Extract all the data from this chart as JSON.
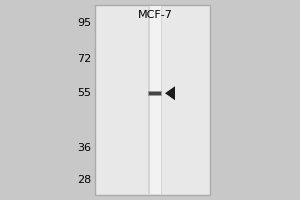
{
  "title": "MCF-7",
  "outer_bg": "#c8c8c8",
  "panel_bg": "#d8d8d8",
  "blot_bg": "#e8e8e8",
  "lane_bg": "#f2f2f2",
  "band_color": "#888888",
  "band_dark": "#444444",
  "arrow_color": "#1a1a1a",
  "border_color": "#aaaaaa",
  "mw_markers": [
    95,
    72,
    55,
    36,
    28
  ],
  "band_mw": 55,
  "title_fontsize": 8,
  "marker_fontsize": 8
}
